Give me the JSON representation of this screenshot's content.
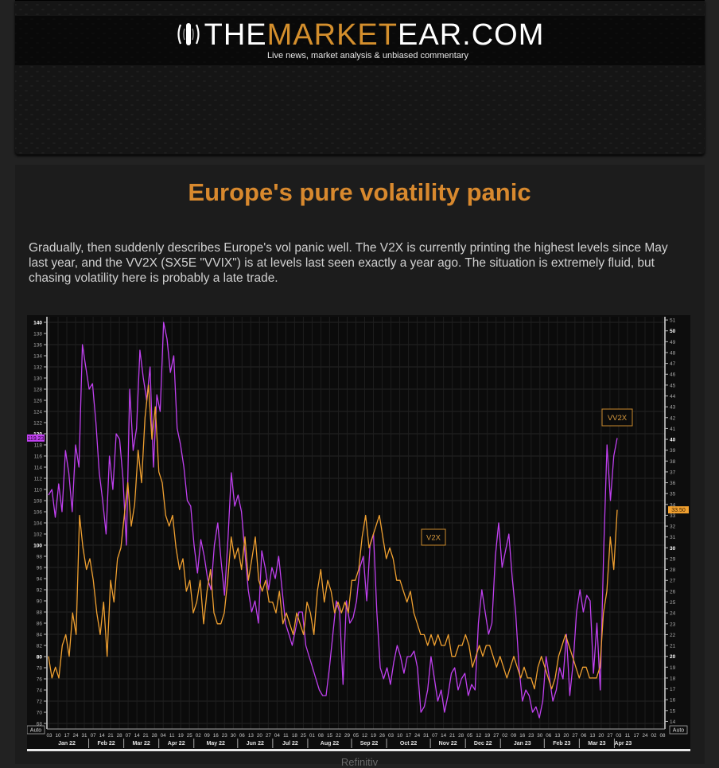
{
  "site": {
    "logo_prefix": "THE",
    "logo_accent": "MARKET",
    "logo_suffix": "EAR.COM",
    "tagline": "Live news, market analysis & unbiased  commentary",
    "accent_color": "#d48f2d"
  },
  "article": {
    "title": "Europe's pure volatility panic",
    "body": "Gradually, then suddenly describes Europe's vol panic well. The V2X is currently printing the highest levels since May last year, and the VV2X (SX5E \"VVIX\") is at levels last seen exactly a year ago. The situation is extremely fluid, but chasing volatility here is probably a late trade.",
    "source": "Refinitiv"
  },
  "chart_data": {
    "type": "line",
    "title": "",
    "left_axis": {
      "ylim": [
        67,
        141
      ],
      "ticks": [
        "140",
        "138",
        "136",
        "134",
        "132",
        "130",
        "128",
        "126",
        "124",
        "122",
        "120",
        "118",
        "116",
        "114",
        "112",
        "110",
        "108",
        "106",
        "104",
        "102",
        "100",
        "98",
        "96",
        "94",
        "92",
        "90",
        "88",
        "86",
        "84",
        "82",
        "80",
        "78",
        "76",
        "74",
        "72",
        "70",
        "68"
      ],
      "auto_label": "Auto",
      "last_value_badge": "119.23"
    },
    "right_axis": {
      "ylim": [
        13.3,
        51.3
      ],
      "ticks": [
        "51",
        "50",
        "49",
        "48",
        "47",
        "46",
        "45",
        "44",
        "43",
        "42",
        "41",
        "40",
        "39",
        "38",
        "37",
        "36",
        "35",
        "34",
        "33",
        "32",
        "31",
        "30",
        "29",
        "28",
        "27",
        "26",
        "25",
        "24",
        "23",
        "22",
        "21",
        "20",
        "19",
        "18",
        "17",
        "16",
        "15",
        "14"
      ],
      "auto_label": "Auto",
      "last_value_badge": "33.50"
    },
    "x_day_ticks": [
      "03",
      "10",
      "17",
      "24",
      "31",
      "07",
      "14",
      "21",
      "28",
      "07",
      "14",
      "21",
      "28",
      "04",
      "11",
      "19",
      "25",
      "02",
      "09",
      "16",
      "23",
      "30",
      "06",
      "13",
      "20",
      "27",
      "04",
      "11",
      "18",
      "25",
      "01",
      "08",
      "15",
      "22",
      "29",
      "05",
      "12",
      "19",
      "26",
      "03",
      "10",
      "17",
      "24",
      "31",
      "07",
      "14",
      "21",
      "28",
      "05",
      "12",
      "19",
      "27",
      "02",
      "09",
      "16",
      "23",
      "30",
      "06",
      "13",
      "20",
      "27",
      "06",
      "13",
      "20",
      "27",
      "03",
      "11",
      "17",
      "24",
      "02",
      "08"
    ],
    "x_month_labels": [
      "Jan 22",
      "Feb 22",
      "Mar 22",
      "Apr 22",
      "May 22",
      "Jun 22",
      "Jul 22",
      "Aug 22",
      "Sep 22",
      "Oct 22",
      "Nov 22",
      "Dec 22",
      "Jan 23",
      "Feb 23",
      "Mar 23",
      "Apr 23"
    ],
    "grid": true,
    "series": [
      {
        "name": "VV2X",
        "axis": "left",
        "color": "#c040f0",
        "values": [
          109,
          110,
          105,
          111,
          106,
          117,
          113,
          106,
          118,
          114,
          136,
          132,
          128,
          129,
          122,
          113,
          108,
          102,
          116,
          110,
          120,
          119,
          112,
          100,
          128,
          117,
          121,
          135,
          130,
          126,
          132,
          114,
          127,
          124,
          140,
          137,
          131,
          134,
          121,
          118,
          114,
          108,
          107,
          100,
          95,
          101,
          98,
          94,
          92,
          100,
          104,
          97,
          91,
          101,
          113,
          107,
          109,
          106,
          99,
          92,
          88,
          90,
          86,
          99,
          96,
          92,
          96,
          94,
          98,
          92,
          86,
          84,
          82,
          85,
          88,
          88,
          82,
          80,
          78,
          76,
          74,
          73,
          73,
          78,
          84,
          90,
          88,
          75,
          90,
          86,
          87,
          90,
          96,
          98,
          90,
          100,
          102,
          88,
          78,
          76,
          78,
          75,
          79,
          82,
          80,
          77,
          80,
          80,
          81,
          78,
          70,
          71,
          74,
          80,
          76,
          72,
          74,
          70,
          73,
          77,
          78,
          74,
          76,
          77,
          73,
          75,
          74,
          86,
          92,
          88,
          84,
          86,
          98,
          104,
          96,
          99,
          102,
          94,
          88,
          78,
          72,
          74,
          73,
          70,
          71,
          69,
          72,
          80,
          76,
          72,
          74,
          78,
          76,
          84,
          73,
          79,
          88,
          92,
          88,
          91,
          90,
          77,
          86,
          74,
          99,
          118,
          108,
          116,
          119.23
        ]
      },
      {
        "name": "V2X",
        "axis": "right",
        "color": "#f0a030",
        "values": [
          20,
          18,
          19,
          18,
          21,
          22,
          20,
          24,
          22,
          33,
          30,
          28,
          29,
          27,
          24,
          22,
          25,
          20,
          27,
          25,
          29,
          30,
          33,
          36,
          32,
          34,
          39,
          36,
          42,
          45,
          40,
          43,
          37,
          36,
          33,
          32,
          33,
          30,
          28,
          29,
          26,
          27,
          24,
          25,
          27,
          23,
          26,
          28,
          24,
          23,
          23,
          24,
          27,
          31,
          29,
          30,
          28,
          31,
          27,
          29,
          31,
          27,
          26,
          27,
          25,
          25,
          24,
          26,
          23,
          24,
          23,
          22,
          24,
          23,
          22,
          25,
          24,
          22,
          26,
          28,
          25,
          27,
          26,
          24,
          25,
          24,
          25,
          24,
          27,
          27,
          28,
          31,
          33,
          30,
          31,
          32,
          33,
          31,
          29,
          30,
          29,
          27,
          27,
          26,
          25,
          26,
          24,
          23,
          22,
          22,
          21,
          22,
          21,
          22,
          21,
          21,
          22,
          20,
          20,
          21,
          21,
          22,
          21,
          19,
          20,
          21,
          20,
          21,
          21,
          20,
          19,
          20,
          19,
          18,
          19,
          20,
          19,
          18,
          19,
          18,
          18,
          17,
          19,
          20,
          19,
          18,
          17,
          18,
          20,
          21,
          22,
          21,
          20,
          19,
          18,
          19,
          19,
          18,
          18,
          18,
          19,
          24,
          26,
          31,
          28,
          33.5
        ]
      }
    ],
    "annotations": [
      {
        "text": "VV2X",
        "series": "VV2X"
      },
      {
        "text": "V2X",
        "series": "V2X"
      }
    ]
  }
}
